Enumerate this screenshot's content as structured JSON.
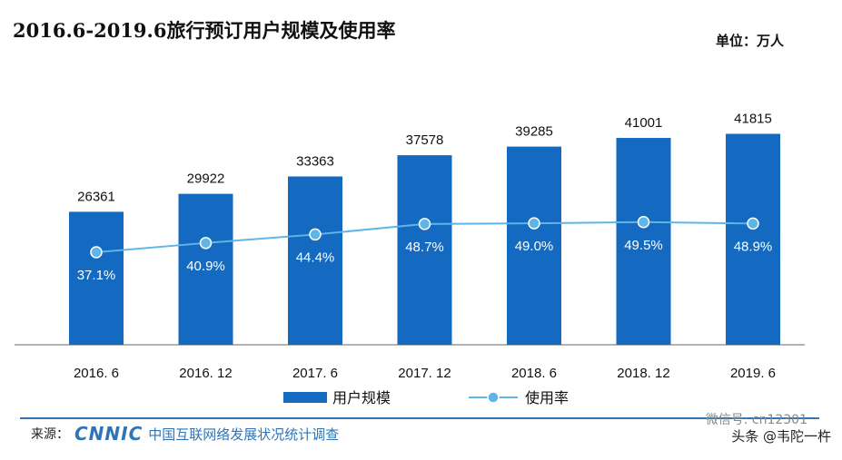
{
  "title": "2016.6-2019.6旅行预订用户规模及使用率",
  "unit_label": "单位：万人",
  "source": {
    "prefix": "来源：",
    "logo_text": "CNNIC",
    "org": "中国互联网络发展状况统计调查"
  },
  "watermark": {
    "wechat": "微信号: cn12301",
    "credit": "头条 @韦陀一杵"
  },
  "colors": {
    "bar": "#1469c0",
    "line": "#5fb6e6",
    "grid_axis": "#999999",
    "value_text": "#111111",
    "rate_text": "#ffffff"
  },
  "chart_data": {
    "type": "bar",
    "categories": [
      "2016. 6",
      "2016. 12",
      "2017. 6",
      "2017. 12",
      "2018. 6",
      "2018. 12",
      "2019. 6"
    ],
    "series": [
      {
        "name": "用户规模",
        "type": "bar",
        "values": [
          26361,
          29922,
          33363,
          37578,
          39285,
          41001,
          41815
        ]
      },
      {
        "name": "使用率",
        "type": "line",
        "values": [
          37.1,
          40.9,
          44.4,
          48.7,
          49.0,
          49.5,
          48.9
        ],
        "labels": [
          "37.1%",
          "40.9%",
          "44.4%",
          "48.7%",
          "49.0%",
          "49.5%",
          "48.9%"
        ]
      }
    ],
    "legend_position": "bottom",
    "grid": false
  }
}
